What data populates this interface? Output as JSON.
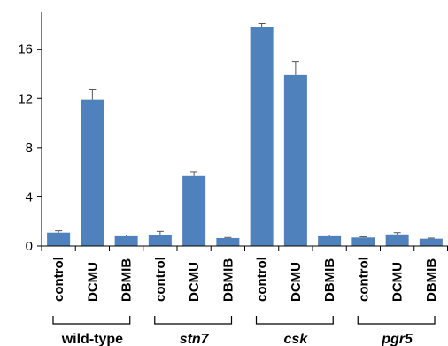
{
  "chart_data": {
    "type": "bar",
    "ylim": [
      0,
      19
    ],
    "yticks": [
      0,
      4,
      8,
      12,
      16
    ],
    "ytick_labels": [
      "0",
      "4",
      "8",
      "12",
      "16"
    ],
    "grid": false,
    "bar_color": "#4f81bd",
    "categories": [
      "control",
      "DCMU",
      "DBMIB",
      "control",
      "DCMU",
      "DBMIB",
      "control",
      "DCMU",
      "DBMIB",
      "control",
      "DCMU",
      "DBMIB"
    ],
    "values": [
      1.1,
      11.9,
      0.8,
      0.9,
      5.7,
      0.65,
      17.8,
      13.9,
      0.8,
      0.7,
      0.95,
      0.6
    ],
    "errors": [
      0.15,
      0.8,
      0.1,
      0.3,
      0.35,
      0.05,
      0.3,
      1.1,
      0.1,
      0.05,
      0.15,
      0.05
    ],
    "groups": [
      {
        "label": "wild-type",
        "italic": false
      },
      {
        "label": "stn7",
        "italic": true
      },
      {
        "label": "csk",
        "italic": true
      },
      {
        "label": "pgr5",
        "italic": true
      }
    ]
  }
}
